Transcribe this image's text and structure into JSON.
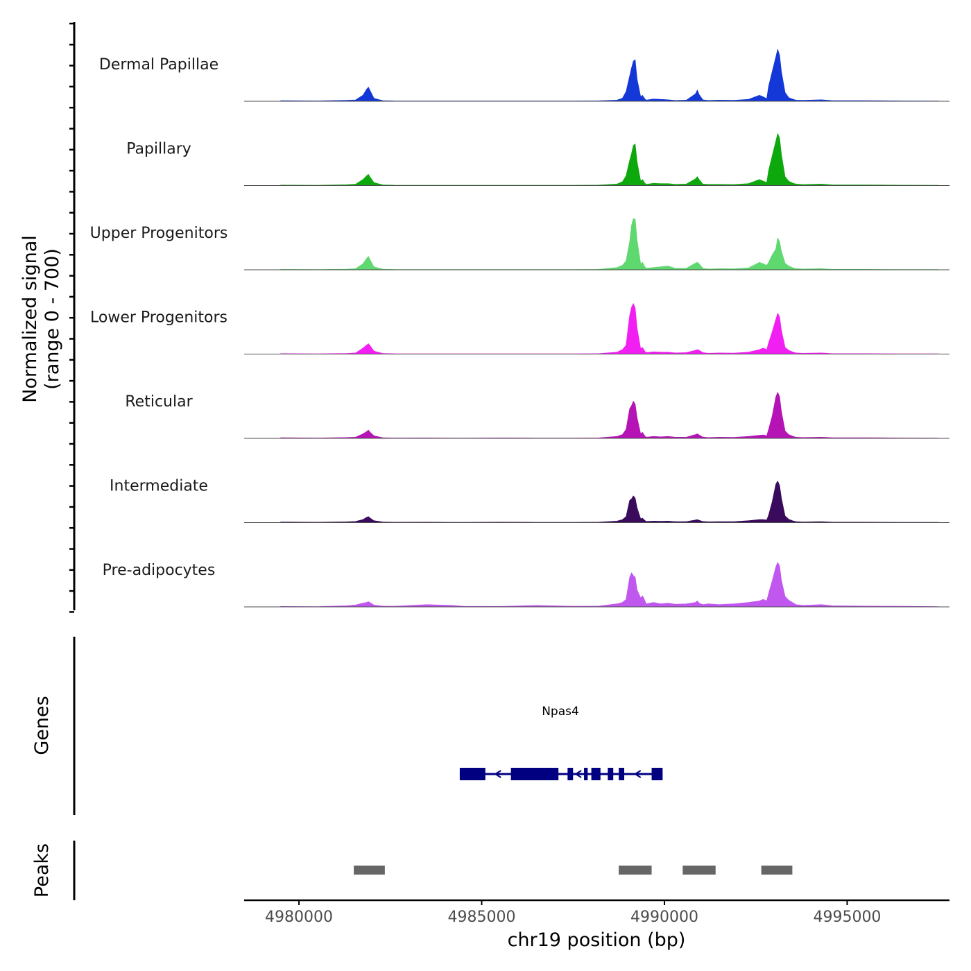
{
  "chart_data": {
    "type": "area",
    "title": "",
    "ylabel_line1": "Normalized signal",
    "ylabel_line2": "(range 0 - 700)",
    "ylim": [
      0,
      700
    ],
    "xlabel": "chr19 position (bp)",
    "xlim": [
      4978500,
      4997800
    ],
    "x_ticks": [
      4980000,
      4985000,
      4990000,
      4995000
    ],
    "x_tick_labels": [
      "4980000",
      "4985000",
      "4990000",
      "4995000"
    ],
    "profile_x": [
      4979500,
      4980500,
      4981300,
      4981550,
      4981750,
      4981850,
      4981900,
      4981950,
      4982050,
      4982200,
      4982300,
      4982600,
      4983500,
      4984200,
      4984500,
      4985500,
      4986500,
      4987500,
      4988200,
      4988700,
      4988850,
      4988950,
      4989050,
      4989100,
      4989150,
      4989200,
      4989250,
      4989350,
      4989400,
      4989450,
      4989500,
      4989700,
      4989900,
      4990100,
      4990300,
      4990600,
      4990850,
      4990900,
      4990950,
      4991050,
      4991200,
      4991500,
      4991900,
      4992300,
      4992600,
      4992700,
      4992800,
      4992850,
      4992950,
      4993050,
      4993100,
      4993150,
      4993200,
      4993300,
      4993400,
      4993500,
      4993600,
      4993800,
      4994300,
      4994600,
      4995500,
      4996500,
      4997500
    ],
    "series": [
      {
        "name": "Dermal Papillae",
        "color": "#1438d8",
        "values": [
          8,
          5,
          12,
          18,
          80,
          160,
          190,
          140,
          40,
          20,
          8,
          5,
          4,
          3,
          4,
          3,
          3,
          4,
          6,
          15,
          40,
          130,
          340,
          450,
          540,
          560,
          300,
          60,
          80,
          40,
          15,
          30,
          25,
          20,
          10,
          15,
          100,
          150,
          90,
          20,
          10,
          15,
          12,
          25,
          80,
          60,
          35,
          200,
          400,
          600,
          700,
          620,
          400,
          120,
          50,
          30,
          15,
          12,
          20,
          8,
          8,
          5,
          4
        ]
      },
      {
        "name": "Papillary",
        "color": "#0ca80c",
        "values": [
          6,
          4,
          10,
          18,
          80,
          130,
          150,
          110,
          40,
          20,
          8,
          5,
          4,
          3,
          4,
          3,
          3,
          4,
          6,
          20,
          50,
          130,
          340,
          430,
          540,
          560,
          320,
          60,
          80,
          40,
          15,
          30,
          25,
          25,
          15,
          20,
          90,
          120,
          80,
          20,
          15,
          15,
          12,
          25,
          80,
          60,
          40,
          200,
          400,
          600,
          700,
          640,
          420,
          120,
          60,
          35,
          20,
          12,
          20,
          8,
          8,
          5,
          4
        ]
      },
      {
        "name": "Upper Progenitors",
        "color": "#5fd870",
        "values": [
          6,
          4,
          8,
          15,
          80,
          150,
          180,
          130,
          40,
          20,
          8,
          5,
          4,
          3,
          4,
          3,
          3,
          4,
          6,
          30,
          60,
          120,
          380,
          600,
          690,
          680,
          400,
          80,
          100,
          50,
          20,
          30,
          40,
          50,
          20,
          20,
          90,
          100,
          80,
          20,
          10,
          15,
          12,
          25,
          100,
          80,
          60,
          100,
          200,
          280,
          430,
          380,
          250,
          90,
          50,
          30,
          15,
          10,
          15,
          6,
          6,
          4,
          3
        ]
      },
      {
        "name": "Lower Progenitors",
        "color": "#f21ff2",
        "values": [
          6,
          4,
          8,
          15,
          80,
          120,
          140,
          110,
          40,
          20,
          8,
          5,
          4,
          3,
          4,
          3,
          3,
          4,
          6,
          25,
          60,
          120,
          520,
          630,
          680,
          620,
          350,
          70,
          90,
          45,
          20,
          30,
          25,
          25,
          15,
          20,
          50,
          60,
          50,
          20,
          10,
          15,
          12,
          25,
          60,
          80,
          60,
          150,
          300,
          470,
          550,
          500,
          320,
          90,
          50,
          30,
          15,
          10,
          15,
          6,
          6,
          4,
          3
        ]
      },
      {
        "name": "Reticular",
        "color": "#b513b5",
        "values": [
          8,
          5,
          10,
          15,
          60,
          90,
          110,
          80,
          35,
          18,
          8,
          5,
          6,
          3,
          4,
          6,
          4,
          4,
          6,
          25,
          50,
          120,
          400,
          440,
          500,
          460,
          280,
          60,
          80,
          40,
          15,
          25,
          20,
          25,
          15,
          15,
          50,
          60,
          45,
          18,
          10,
          15,
          12,
          25,
          40,
          45,
          35,
          120,
          300,
          560,
          620,
          560,
          360,
          100,
          50,
          30,
          15,
          10,
          15,
          8,
          8,
          5,
          4
        ]
      },
      {
        "name": "Intermediate",
        "color": "#3a0a5c",
        "values": [
          8,
          5,
          10,
          15,
          40,
          70,
          80,
          60,
          25,
          15,
          8,
          5,
          6,
          3,
          4,
          6,
          4,
          4,
          6,
          20,
          40,
          80,
          300,
          320,
          360,
          330,
          200,
          50,
          60,
          35,
          15,
          20,
          18,
          20,
          12,
          12,
          35,
          40,
          30,
          15,
          10,
          12,
          12,
          25,
          40,
          40,
          35,
          100,
          280,
          520,
          560,
          500,
          330,
          90,
          45,
          25,
          12,
          8,
          12,
          6,
          6,
          4,
          3
        ]
      },
      {
        "name": "Pre-adipocytes",
        "color": "#c058f0",
        "values": [
          6,
          4,
          15,
          25,
          50,
          60,
          70,
          55,
          25,
          15,
          10,
          8,
          30,
          20,
          8,
          6,
          20,
          8,
          10,
          40,
          60,
          100,
          400,
          460,
          420,
          400,
          230,
          120,
          150,
          100,
          40,
          60,
          40,
          50,
          35,
          40,
          60,
          80,
          50,
          30,
          40,
          30,
          40,
          60,
          80,
          100,
          80,
          180,
          350,
          540,
          600,
          550,
          360,
          140,
          90,
          60,
          30,
          20,
          30,
          15,
          10,
          8,
          4
        ]
      }
    ],
    "genes_label": "Genes",
    "gene": {
      "name": "Npas4",
      "strand": "-",
      "start": 4984400,
      "end": 4989950,
      "exons": [
        [
          4984400,
          4985100
        ],
        [
          4985800,
          4987100
        ],
        [
          4987350,
          4987500
        ],
        [
          4987800,
          4987900
        ],
        [
          4988000,
          4988250
        ],
        [
          4988450,
          4988600
        ],
        [
          4988750,
          4988900
        ],
        [
          4989650,
          4989950
        ]
      ]
    },
    "peaks_label": "Peaks",
    "peaks": [
      [
        4981500,
        4982350
      ],
      [
        4988750,
        4989650
      ],
      [
        4990500,
        4991400
      ],
      [
        4992650,
        4993500
      ]
    ]
  }
}
